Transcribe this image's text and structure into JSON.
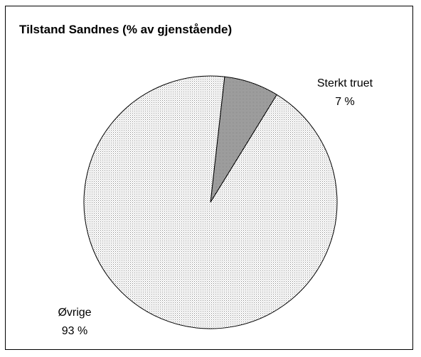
{
  "chart_data": {
    "type": "pie",
    "title": "Tilstand Sandnes (% av gjenstående)",
    "slices": [
      {
        "name": "Sterkt truet",
        "value": 7,
        "value_label": "7 %",
        "pattern": "dense-dots",
        "color": "#a8a8a8"
      },
      {
        "name": "Øvrige",
        "value": 93,
        "value_label": "93 %",
        "pattern": "fine-dots",
        "color": "#e8e8e8"
      }
    ],
    "outline_color": "#000000",
    "legend": "none"
  }
}
